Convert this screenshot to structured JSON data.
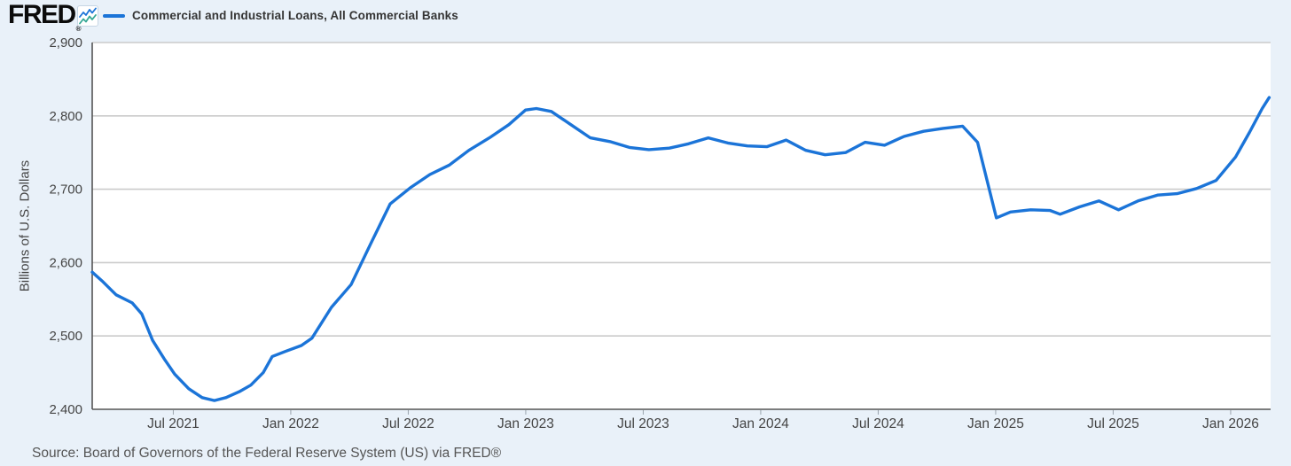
{
  "header": {
    "logo": "FRED",
    "registered_mark": "®"
  },
  "legend": {
    "label": "Commercial and Industrial Loans, All Commercial Banks"
  },
  "footer": {
    "source": "Source: Board of Governors of the Federal Reserve System (US) via FRED®"
  },
  "colors": {
    "page_bg": "#e9f1f9",
    "plot_bg": "#ffffff",
    "grid": "#cbcbcb",
    "axis": "#555555",
    "tick_mark": "#9aa4ad",
    "tick_text": "#444444",
    "line": "#1b74d8",
    "icon_teal": "#36a795"
  },
  "chart_data": {
    "type": "line",
    "title": "Commercial and Industrial Loans, All Commercial Banks",
    "xlabel": "",
    "ylabel": "Billions of U.S. Dollars",
    "xlim": [
      2021.155,
      2026.17
    ],
    "ylim": [
      2400,
      2900
    ],
    "grid": "horizontal",
    "legend_position": "top-left",
    "y_ticks": [
      {
        "value": 2400,
        "label": "2,400"
      },
      {
        "value": 2500,
        "label": "2,500"
      },
      {
        "value": 2600,
        "label": "2,600"
      },
      {
        "value": 2700,
        "label": "2,700"
      },
      {
        "value": 2800,
        "label": "2,800"
      },
      {
        "value": 2900,
        "label": "2,900"
      }
    ],
    "x_ticks": [
      {
        "value": 2021.5,
        "label": "Jul 2021"
      },
      {
        "value": 2022.0,
        "label": "Jan 2022"
      },
      {
        "value": 2022.5,
        "label": "Jul 2022"
      },
      {
        "value": 2023.0,
        "label": "Jan 2023"
      },
      {
        "value": 2023.5,
        "label": "Jul 2023"
      },
      {
        "value": 2024.0,
        "label": "Jan 2024"
      },
      {
        "value": 2024.5,
        "label": "Jul 2024"
      },
      {
        "value": 2025.0,
        "label": "Jan 2025"
      },
      {
        "value": 2025.5,
        "label": "Jul 2025"
      },
      {
        "value": 2026.0,
        "label": "Jan 2026"
      }
    ],
    "series": [
      {
        "name": "Commercial and Industrial Loans, All Commercial Banks",
        "color": "#1b74d8",
        "units": "Billions of U.S. Dollars",
        "points": [
          [
            2021.155,
            2587
          ],
          [
            2021.197,
            2575
          ],
          [
            2021.257,
            2556
          ],
          [
            2021.325,
            2545
          ],
          [
            2021.366,
            2530
          ],
          [
            2021.412,
            2494
          ],
          [
            2021.461,
            2469
          ],
          [
            2021.506,
            2448
          ],
          [
            2021.566,
            2428
          ],
          [
            2021.623,
            2416
          ],
          [
            2021.675,
            2412
          ],
          [
            2021.724,
            2416
          ],
          [
            2021.781,
            2424
          ],
          [
            2021.83,
            2433
          ],
          [
            2021.883,
            2450
          ],
          [
            2021.921,
            2472
          ],
          [
            2021.978,
            2479
          ],
          [
            2022.045,
            2487
          ],
          [
            2022.09,
            2497
          ],
          [
            2022.173,
            2539
          ],
          [
            2022.257,
            2570
          ],
          [
            2022.339,
            2625
          ],
          [
            2022.423,
            2680
          ],
          [
            2022.509,
            2702
          ],
          [
            2022.592,
            2720
          ],
          [
            2022.675,
            2733
          ],
          [
            2022.758,
            2753
          ],
          [
            2022.845,
            2770
          ],
          [
            2022.928,
            2788
          ],
          [
            2022.999,
            2808
          ],
          [
            2023.045,
            2810
          ],
          [
            2023.109,
            2806
          ],
          [
            2023.192,
            2788
          ],
          [
            2023.275,
            2770
          ],
          [
            2023.358,
            2765
          ],
          [
            2023.441,
            2757
          ],
          [
            2023.524,
            2754
          ],
          [
            2023.611,
            2756
          ],
          [
            2023.693,
            2762
          ],
          [
            2023.777,
            2770
          ],
          [
            2023.86,
            2763
          ],
          [
            2023.943,
            2759
          ],
          [
            2024.026,
            2758
          ],
          [
            2024.108,
            2767
          ],
          [
            2024.192,
            2753
          ],
          [
            2024.274,
            2747
          ],
          [
            2024.361,
            2750
          ],
          [
            2024.444,
            2764
          ],
          [
            2024.527,
            2760
          ],
          [
            2024.61,
            2772
          ],
          [
            2024.693,
            2779
          ],
          [
            2024.776,
            2783
          ],
          [
            2024.859,
            2786
          ],
          [
            2024.923,
            2764
          ],
          [
            2025.003,
            2661
          ],
          [
            2025.063,
            2669
          ],
          [
            2025.149,
            2672
          ],
          [
            2025.232,
            2671
          ],
          [
            2025.274,
            2666
          ],
          [
            2025.357,
            2676
          ],
          [
            2025.44,
            2684
          ],
          [
            2025.523,
            2672
          ],
          [
            2025.606,
            2684
          ],
          [
            2025.689,
            2692
          ],
          [
            2025.772,
            2694
          ],
          [
            2025.855,
            2701
          ],
          [
            2025.938,
            2712
          ],
          [
            2026.021,
            2744
          ],
          [
            2026.081,
            2778
          ],
          [
            2026.134,
            2810
          ],
          [
            2026.164,
            2825
          ]
        ]
      }
    ]
  }
}
